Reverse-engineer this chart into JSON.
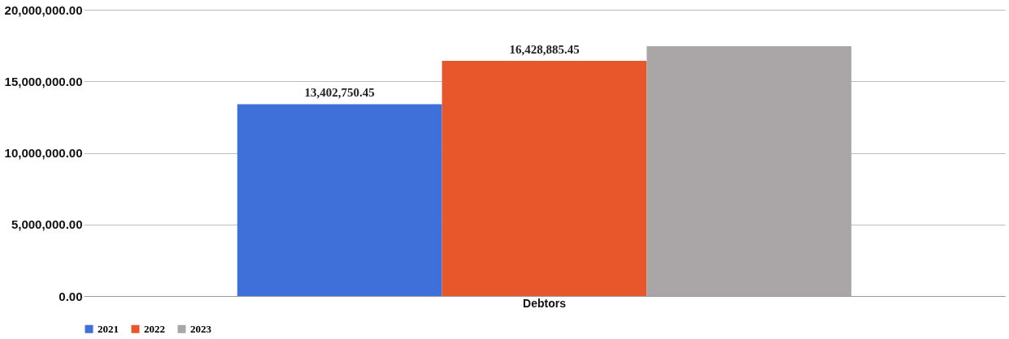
{
  "chart_data": {
    "type": "bar",
    "categories": [
      "Debtors"
    ],
    "series": [
      {
        "name": "2021",
        "color": "#3f6fd8",
        "values": [
          13402750.45
        ],
        "value_labels": [
          "13,402,750.45"
        ]
      },
      {
        "name": "2022",
        "color": "#e8572c",
        "values": [
          16428885.45
        ],
        "value_labels": [
          "16,428,885.45"
        ]
      },
      {
        "name": "2023",
        "color": "#aaa6a8",
        "values": [
          17450000
        ],
        "value_labels": [
          null
        ]
      }
    ],
    "ylim": [
      0,
      20000000
    ],
    "yticks": [
      {
        "value": 0,
        "label": "0.00"
      },
      {
        "value": 5000000,
        "label": "5,000,000.00"
      },
      {
        "value": 10000000,
        "label": "10,000,000.00"
      },
      {
        "value": 15000000,
        "label": "15,000,000.00"
      },
      {
        "value": 20000000,
        "label": "20,000,000.00"
      }
    ],
    "grid": "y",
    "legend": "bottom"
  }
}
